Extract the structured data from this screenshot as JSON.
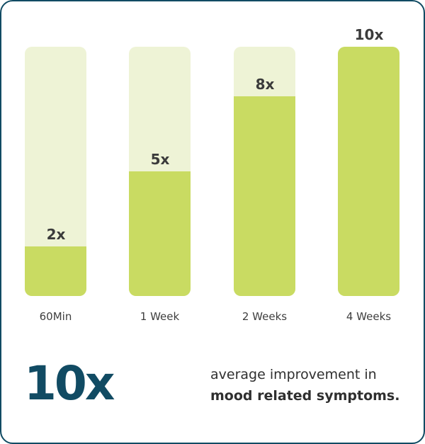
{
  "colors": {
    "track": "#eef3d6",
    "fill": "#c9db62",
    "border": "#114b63",
    "label": "#3b3b3b"
  },
  "chart_data": {
    "type": "bar",
    "title": "",
    "xlabel": "",
    "ylabel": "",
    "ylim": [
      0,
      10
    ],
    "grid": false,
    "categories": [
      "60Min",
      "1 Week",
      "2 Weeks",
      "4 Weeks"
    ],
    "values": [
      2,
      5,
      8,
      10
    ],
    "value_labels": [
      "2x",
      "5x",
      "8x",
      "10x"
    ]
  },
  "summary": {
    "big_value": "10x",
    "caption_line1": "average improvement in",
    "caption_line2": "mood related symptoms."
  }
}
